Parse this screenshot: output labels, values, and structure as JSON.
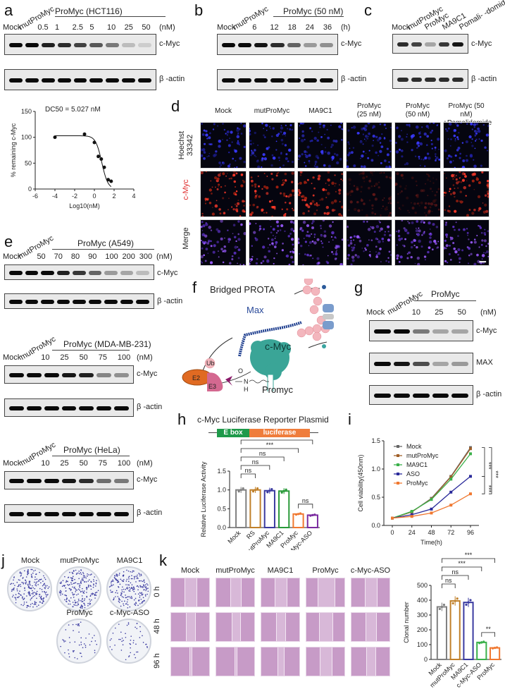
{
  "panels": {
    "a": {
      "label": "a",
      "group_label": "ProMyc (HCT116)",
      "lanes": [
        "Mock",
        "mutProMyc",
        "0.5",
        "1",
        "2.5",
        "5",
        "10",
        "25",
        "50",
        "(nM)"
      ],
      "blots": [
        "c-Myc",
        "β -actin"
      ],
      "cmyc_intensity": [
        1,
        1,
        0.9,
        0.85,
        0.75,
        0.65,
        0.5,
        0.2,
        0.12
      ]
    },
    "b": {
      "label": "b",
      "group_label": "ProMyc (50 nM)",
      "lanes": [
        "Mock",
        "mutProMyc",
        "6",
        "12",
        "18",
        "24",
        "36",
        "(h)"
      ],
      "blots": [
        "c-Myc",
        "β -actin"
      ],
      "cmyc_intensity": [
        1,
        1,
        0.95,
        0.85,
        0.6,
        0.35,
        0.4
      ]
    },
    "c": {
      "label": "c",
      "lanes": [
        "Mock",
        "mutProMyc",
        "ProMyc",
        "MA9C1",
        "Pomali-\n-domide"
      ],
      "blots": [
        "c-Myc",
        "β -actin"
      ],
      "cmyc_intensity": [
        0.85,
        0.75,
        0.3,
        0.8,
        0.95
      ]
    },
    "d": {
      "label": "d",
      "columns": [
        "Mock",
        "mutProMyc",
        "MA9C1",
        "ProMyc\n(25 nM)",
        "ProMyc\n(50 nM)",
        "ProMyc (50 nM)\n+Pomalidomide"
      ],
      "rows": [
        "Hoechst\n33342",
        "c-Myc",
        "Merge"
      ],
      "row_colors": [
        "#222222",
        "#e03030",
        "#222222"
      ]
    },
    "e": {
      "label": "e",
      "blocks": [
        {
          "group_label": "ProMyc (A549)",
          "lanes": [
            "Mock",
            "mutProMyc",
            "50",
            "70",
            "80",
            "90",
            "100",
            "200",
            "300",
            "(nM)"
          ],
          "blots": [
            "c-Myc",
            "β -actin"
          ],
          "cmyc_intensity": [
            1,
            1,
            1,
            0.9,
            0.8,
            0.6,
            0.35,
            0.3,
            0.2
          ]
        },
        {
          "group_label": "ProMyc (MDA-MB-231)",
          "lanes": [
            "Mock",
            "mutProMyc",
            "10",
            "25",
            "50",
            "75",
            "100",
            "(nM)"
          ],
          "blots": [
            "c-Myc",
            "β -actin"
          ],
          "cmyc_intensity": [
            1,
            1,
            1,
            0.95,
            0.9,
            0.45,
            0.4
          ]
        },
        {
          "group_label": "ProMyc (HeLa)",
          "lanes": [
            "Mock",
            "mutProMyc",
            "10",
            "25",
            "50",
            "75",
            "100",
            "(nM)"
          ],
          "blots": [
            "c-Myc",
            "β -actin"
          ],
          "cmyc_intensity": [
            1,
            1,
            1,
            0.95,
            0.85,
            0.55,
            0.5
          ]
        }
      ]
    },
    "f": {
      "label": "f",
      "title": "Bridged PROTA",
      "labels": {
        "max": "Max",
        "cmyc": "c-Myc",
        "e2": "E2",
        "e3": "E3",
        "ub": "Ub",
        "promyc": "Promyc",
        "n": "N",
        "h": "H",
        "o": "O"
      }
    },
    "g": {
      "label": "g",
      "group_label": "ProMyc",
      "lanes": [
        "Mock",
        "mutProMyc",
        "10",
        "25",
        "50",
        "(nM)"
      ],
      "blots": [
        "c-Myc",
        "MAX",
        "β -actin"
      ],
      "cmyc_intensity": [
        1,
        1,
        0.5,
        0.3,
        0.3
      ],
      "max_intensity": [
        1,
        0.95,
        0.7,
        0.3,
        0.35
      ]
    },
    "h": {
      "label": "h",
      "title": "c-Myc Luciferase Reporter Plasmid",
      "construct": {
        "ebox": "E box",
        "luciferase": "luciferase",
        "ebox_color": "#1e9a4a",
        "luc_color": "#ef7d3c"
      }
    },
    "i": {
      "label": "i"
    },
    "j": {
      "label": "j",
      "dishes": [
        "Mock",
        "mutProMyc",
        "MA9C1",
        "ProMyc",
        "c-Myc-ASO"
      ]
    },
    "k": {
      "label": "k",
      "columns": [
        "Mock",
        "mutProMyc",
        "MA9C1",
        "ProMyc",
        "c-Myc-ASO"
      ],
      "rows": [
        "0 h",
        "48 h",
        "96 h"
      ]
    }
  },
  "chart_data": [
    {
      "id": "a-dose-response",
      "type": "scatter",
      "title": "DC50 = 5.027 nM",
      "xlabel": "Log10(nM)",
      "ylabel": "% remaining c-Myc",
      "xlim": [
        -6,
        4
      ],
      "ylim": [
        0,
        150
      ],
      "xticks": [
        -6,
        -4,
        -2,
        0,
        2,
        4
      ],
      "yticks": [
        0,
        50,
        100,
        150
      ],
      "x": [
        -4,
        -1,
        0,
        0.4,
        0.7,
        1.0,
        1.4,
        1.7
      ],
      "y": [
        100,
        106,
        90,
        63,
        58,
        42,
        18,
        15
      ],
      "fit": "sigmoidal"
    },
    {
      "id": "h-luciferase",
      "type": "bar",
      "ylabel": "Relative Luciferase Activity",
      "ylim": [
        0,
        1.5
      ],
      "yticks": [
        0.0,
        0.5,
        1.0,
        1.5
      ],
      "categories": [
        "Mock",
        "RS",
        "mutProMyc",
        "MA9C1",
        "ProMyc",
        "c-Myc-ASO"
      ],
      "values": [
        1.0,
        1.0,
        0.98,
        0.97,
        0.36,
        0.33
      ],
      "colors": [
        "#808080",
        "#c0802a",
        "#3a3aa0",
        "#2a9a3a",
        "#f07830",
        "#7a2aa0"
      ],
      "significance": [
        {
          "pair": [
            "Mock",
            "RS"
          ],
          "label": "ns"
        },
        {
          "pair": [
            "Mock",
            "mutProMyc"
          ],
          "label": "ns"
        },
        {
          "pair": [
            "Mock",
            "MA9C1"
          ],
          "label": "ns"
        },
        {
          "pair": [
            "Mock",
            "ProMyc"
          ],
          "label": "***"
        },
        {
          "pair": [
            "Mock",
            "c-Myc-ASO"
          ],
          "label": "***"
        },
        {
          "pair": [
            "ProMyc",
            "c-Myc-ASO"
          ],
          "label": "ns"
        }
      ]
    },
    {
      "id": "i-viability",
      "type": "line",
      "xlabel": "Time(h)",
      "ylabel": "Cell viability(450nm)",
      "x": [
        0,
        24,
        48,
        72,
        96
      ],
      "ylim": [
        0,
        1.5
      ],
      "yticks": [
        0.0,
        0.5,
        1.0,
        1.5
      ],
      "legend_position": "upper-left",
      "series": [
        {
          "name": "Mock",
          "color": "#666666",
          "values": [
            0.13,
            0.24,
            0.48,
            0.87,
            1.38
          ]
        },
        {
          "name": "mutProMyc",
          "color": "#a0602a",
          "values": [
            0.13,
            0.24,
            0.47,
            0.86,
            1.36
          ]
        },
        {
          "name": "MA9C1",
          "color": "#3ab04a",
          "values": [
            0.13,
            0.25,
            0.46,
            0.82,
            1.27
          ]
        },
        {
          "name": "ASO",
          "color": "#2a2a9a",
          "values": [
            0.13,
            0.19,
            0.29,
            0.59,
            0.87
          ]
        },
        {
          "name": "ProMyc",
          "color": "#f07830",
          "values": [
            0.13,
            0.16,
            0.22,
            0.36,
            0.56
          ]
        }
      ],
      "significance": [
        "***",
        "***",
        "***"
      ]
    },
    {
      "id": "k-clonal",
      "type": "bar",
      "ylabel": "Clonal number",
      "ylim": [
        0,
        500
      ],
      "yticks": [
        0,
        100,
        200,
        300,
        400,
        500
      ],
      "categories": [
        "Mock",
        "mutProMyc",
        "MA9C1",
        "c-Myc-ASO",
        "ProMyc"
      ],
      "values": [
        355,
        395,
        385,
        115,
        78
      ],
      "colors": [
        "#808080",
        "#c0802a",
        "#3a3aa0",
        "#3ab04a",
        "#f07830"
      ],
      "significance": [
        {
          "pair": [
            "Mock",
            "mutProMyc"
          ],
          "label": "ns"
        },
        {
          "pair": [
            "Mock",
            "MA9C1"
          ],
          "label": "ns"
        },
        {
          "pair": [
            "Mock",
            "c-Myc-ASO"
          ],
          "label": "***"
        },
        {
          "pair": [
            "Mock",
            "ProMyc"
          ],
          "label": "***"
        },
        {
          "pair": [
            "c-Myc-ASO",
            "ProMyc"
          ],
          "label": "**"
        }
      ]
    }
  ]
}
